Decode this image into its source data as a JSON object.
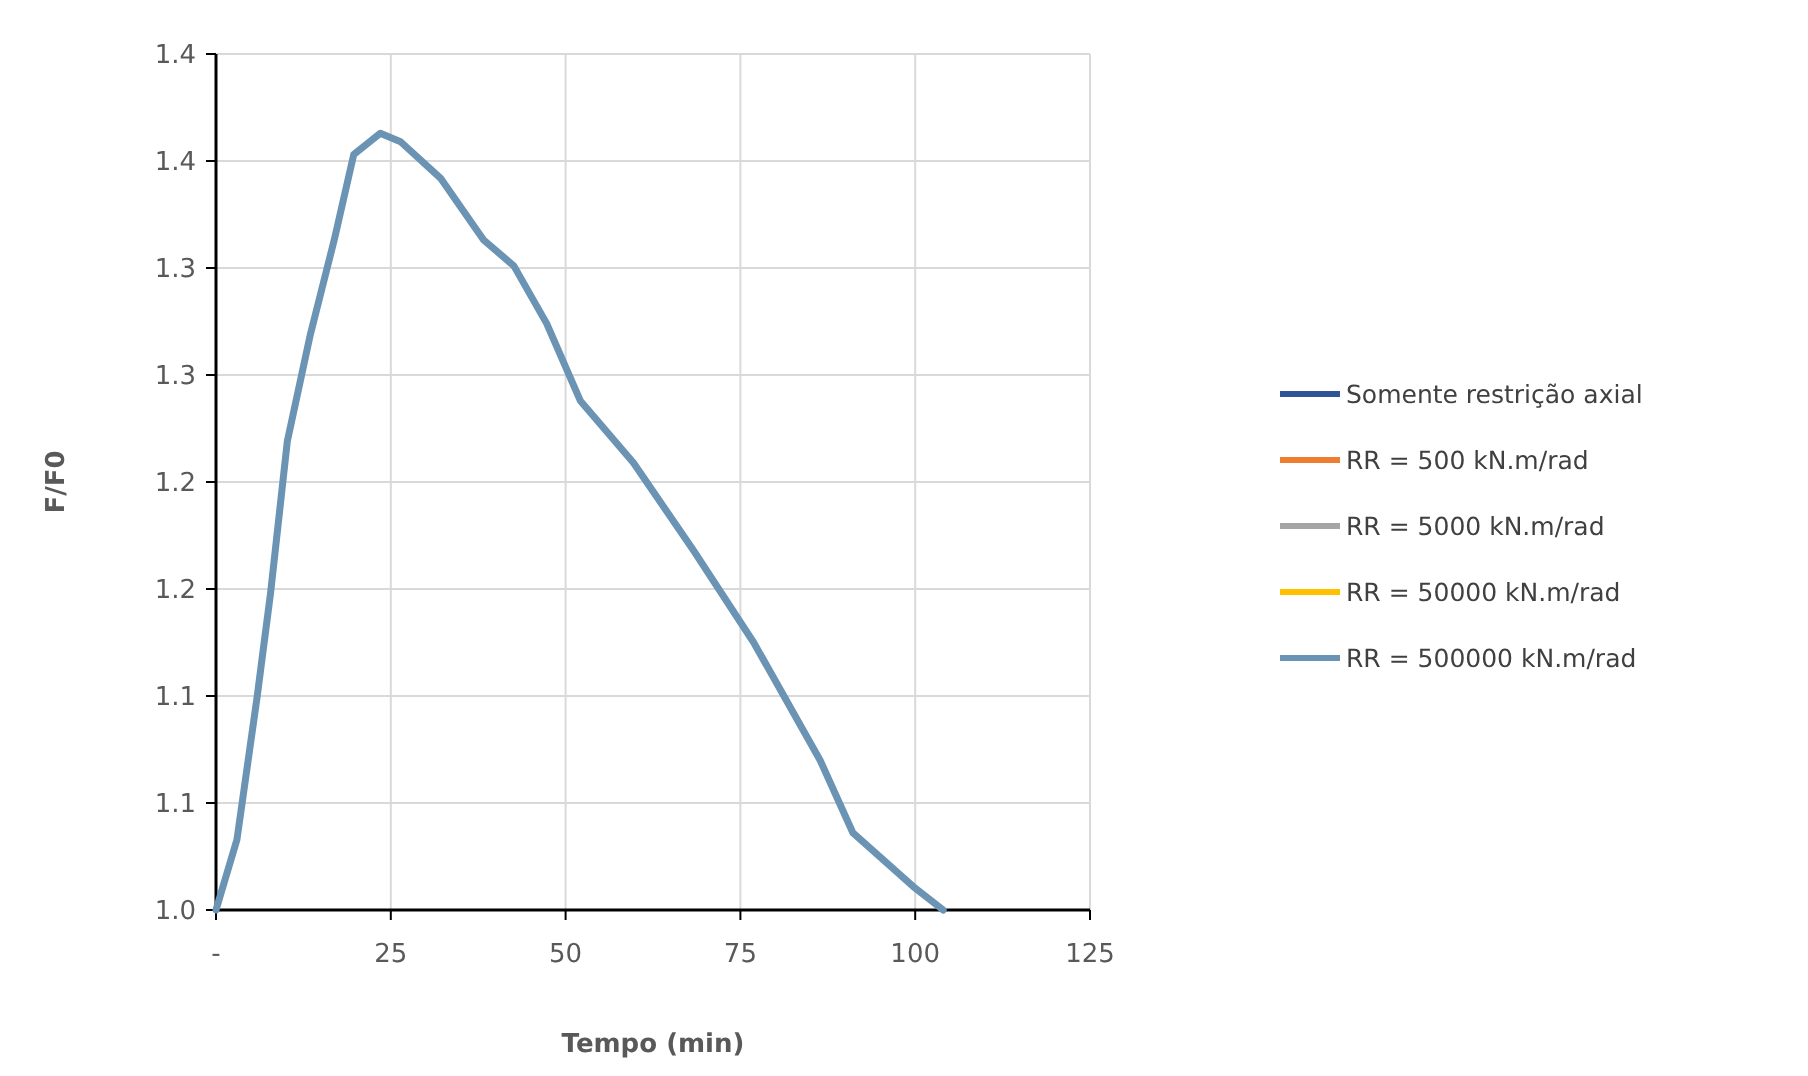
{
  "chart_data": {
    "type": "line",
    "xlabel": "Tempo (min)",
    "ylabel": "F/F0",
    "x": [
      0,
      3.0,
      5.9,
      7.8,
      10.2,
      13.5,
      16.9,
      19.7,
      23.5,
      26.4,
      32.1,
      38.3,
      42.6,
      47.3,
      52.1,
      59.7,
      68.3,
      76.9,
      86.4,
      91.1,
      99.7,
      104
    ],
    "series": [
      {
        "name": "Somente restrição axial",
        "color": "#2f5597",
        "values": [
          null,
          null,
          null,
          null,
          null,
          null,
          null,
          null,
          null,
          null,
          null,
          null,
          null,
          null,
          null,
          null,
          null,
          null,
          null,
          null,
          null,
          null
        ]
      },
      {
        "name": "RR = 500 kN.m/rad",
        "color": "#ed7d31",
        "values": [
          null,
          null,
          null,
          null,
          null,
          null,
          null,
          null,
          null,
          null,
          null,
          null,
          null,
          null,
          null,
          null,
          null,
          null,
          null,
          null,
          null,
          null
        ]
      },
      {
        "name": "RR = 5000 kN.m/rad",
        "color": "#a5a5a5",
        "values": [
          null,
          null,
          null,
          null,
          null,
          null,
          null,
          null,
          null,
          null,
          null,
          null,
          null,
          null,
          null,
          null,
          null,
          null,
          null,
          null,
          null,
          null
        ]
      },
      {
        "name": "RR = 50000 kN.m/rad",
        "color": "#ffc000",
        "values": [
          null,
          null,
          null,
          null,
          null,
          null,
          null,
          null,
          null,
          null,
          null,
          null,
          null,
          null,
          null,
          null,
          null,
          null,
          null,
          null,
          null,
          null
        ]
      },
      {
        "name": "RR = 500000 kN.m/rad",
        "color": "#6a93b4",
        "values": [
          1.0,
          1.033,
          1.1,
          1.148,
          1.219,
          1.269,
          1.313,
          1.353,
          1.363,
          1.359,
          1.342,
          1.313,
          1.301,
          1.274,
          1.238,
          1.209,
          1.168,
          1.125,
          1.07,
          1.036,
          1.011,
          1.0
        ]
      }
    ],
    "xlim": [
      0,
      125
    ],
    "xticks": [
      {
        "value": 0,
        "label": "-"
      },
      25,
      50,
      75,
      100,
      125
    ],
    "ylim": [
      1.0,
      1.4
    ],
    "yticks": [
      {
        "value": 1.0,
        "label": "1.0"
      },
      {
        "value": 1.05,
        "label": "1.1"
      },
      {
        "value": 1.1,
        "label": "1.1"
      },
      {
        "value": 1.15,
        "label": "1.2"
      },
      {
        "value": 1.2,
        "label": "1.2"
      },
      {
        "value": 1.25,
        "label": "1.3"
      },
      {
        "value": 1.3,
        "label": "1.3"
      },
      {
        "value": 1.35,
        "label": "1.4"
      },
      {
        "value": 1.4,
        "label": "1.4"
      }
    ],
    "grid": true,
    "legend": "right",
    "marker": "none",
    "line_style": "solid"
  }
}
